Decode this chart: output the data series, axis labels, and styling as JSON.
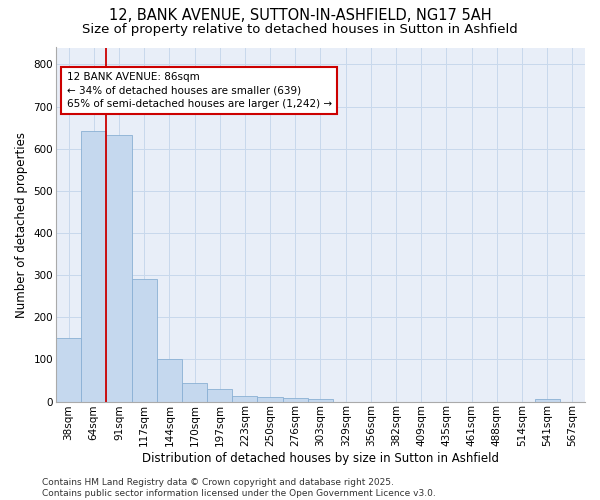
{
  "title1": "12, BANK AVENUE, SUTTON-IN-ASHFIELD, NG17 5AH",
  "title2": "Size of property relative to detached houses in Sutton in Ashfield",
  "xlabel": "Distribution of detached houses by size in Sutton in Ashfield",
  "ylabel": "Number of detached properties",
  "categories": [
    "38sqm",
    "64sqm",
    "91sqm",
    "117sqm",
    "144sqm",
    "170sqm",
    "197sqm",
    "223sqm",
    "250sqm",
    "276sqm",
    "303sqm",
    "329sqm",
    "356sqm",
    "382sqm",
    "409sqm",
    "435sqm",
    "461sqm",
    "488sqm",
    "514sqm",
    "541sqm",
    "567sqm"
  ],
  "values": [
    150,
    642,
    633,
    290,
    100,
    45,
    30,
    13,
    10,
    8,
    5,
    0,
    0,
    0,
    0,
    0,
    0,
    0,
    0,
    5,
    0
  ],
  "bar_color": "#c5d8ee",
  "bar_edge_color": "#8ab0d4",
  "vline_color": "#cc0000",
  "vline_x": 1.5,
  "annotation_text": "12 BANK AVENUE: 86sqm\n← 34% of detached houses are smaller (639)\n65% of semi-detached houses are larger (1,242) →",
  "annotation_box_color": "#ffffff",
  "annotation_box_edge": "#cc0000",
  "ylim": [
    0,
    840
  ],
  "yticks": [
    0,
    100,
    200,
    300,
    400,
    500,
    600,
    700,
    800
  ],
  "grid_color": "#c8d8ec",
  "background_color": "#e8eef8",
  "footer": "Contains HM Land Registry data © Crown copyright and database right 2025.\nContains public sector information licensed under the Open Government Licence v3.0.",
  "title1_fontsize": 10.5,
  "title2_fontsize": 9.5,
  "xlabel_fontsize": 8.5,
  "ylabel_fontsize": 8.5,
  "tick_fontsize": 7.5,
  "annot_fontsize": 7.5,
  "footer_fontsize": 6.5
}
